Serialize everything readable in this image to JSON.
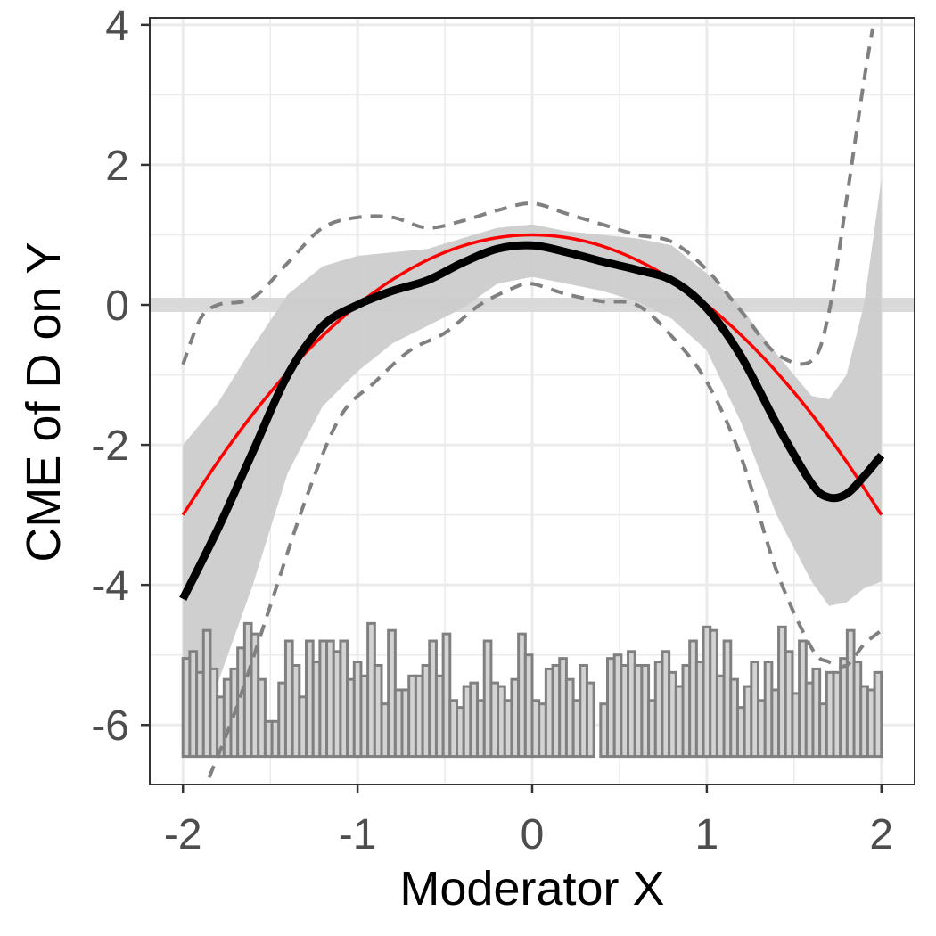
{
  "chart_data": {
    "type": "line",
    "xlabel": "Moderator X",
    "ylabel": "CME of D on Y",
    "xlim": [
      -2.19,
      2.19
    ],
    "ylim": [
      -6.85,
      4.1
    ],
    "x_ticks": [
      -2,
      -1,
      0,
      1,
      2
    ],
    "x_tick_labels": [
      "-2",
      "-1",
      "0",
      "1",
      "2"
    ],
    "y_ticks": [
      -6,
      -4,
      -2,
      0,
      2,
      4
    ],
    "y_tick_labels": [
      "-6",
      "-4",
      "-2",
      "0",
      "2",
      "4"
    ],
    "grid": true,
    "reference_line": {
      "y": 0,
      "color": "#d9d9d9"
    },
    "colors": {
      "estimate": "#000000",
      "true_effect": "#ff0000",
      "confidence_band": "#cccccc",
      "uniform_band": "#808080",
      "histogram_fill": "#d3d3d3",
      "histogram_stroke": "#808080"
    },
    "series": [
      {
        "name": "estimated CME",
        "style": "solid-thick",
        "x": [
          -2.0,
          -1.8,
          -1.6,
          -1.4,
          -1.2,
          -1.0,
          -0.8,
          -0.6,
          -0.4,
          -0.2,
          0.0,
          0.2,
          0.4,
          0.6,
          0.8,
          1.0,
          1.2,
          1.4,
          1.6,
          1.7,
          1.8,
          1.9,
          2.0
        ],
        "y": [
          -4.2,
          -3.2,
          -2.1,
          -1.0,
          -0.3,
          0.0,
          0.2,
          0.35,
          0.6,
          0.8,
          0.85,
          0.75,
          0.62,
          0.5,
          0.35,
          -0.05,
          -0.75,
          -1.7,
          -2.55,
          -2.75,
          -2.7,
          -2.45,
          -2.15
        ]
      },
      {
        "name": "true effect",
        "style": "solid-red",
        "x": [
          -2.0,
          -1.8,
          -1.6,
          -1.4,
          -1.2,
          -1.0,
          -0.8,
          -0.6,
          -0.4,
          -0.2,
          0.0,
          0.2,
          0.4,
          0.6,
          0.8,
          1.0,
          1.2,
          1.4,
          1.6,
          1.8,
          2.0
        ],
        "y": [
          -3.0,
          -2.24,
          -1.56,
          -0.96,
          -0.44,
          0.0,
          0.36,
          0.64,
          0.84,
          0.96,
          1.0,
          0.96,
          0.84,
          0.64,
          0.36,
          0.0,
          -0.44,
          -0.96,
          -1.56,
          -2.24,
          -3.0
        ]
      },
      {
        "name": "uniform band upper",
        "style": "dashed",
        "x": [
          -2.0,
          -1.9,
          -1.8,
          -1.6,
          -1.4,
          -1.2,
          -1.0,
          -0.8,
          -0.6,
          -0.4,
          -0.2,
          0.0,
          0.2,
          0.4,
          0.6,
          0.8,
          1.0,
          1.2,
          1.4,
          1.6,
          1.7,
          1.8,
          1.9,
          1.95
        ],
        "y": [
          -0.85,
          -0.2,
          0.0,
          0.1,
          0.6,
          1.1,
          1.25,
          1.25,
          1.1,
          1.2,
          1.35,
          1.45,
          1.3,
          1.15,
          1.0,
          0.9,
          0.5,
          -0.1,
          -0.7,
          -0.8,
          -0.1,
          1.5,
          3.2,
          3.95
        ]
      },
      {
        "name": "uniform band lower",
        "style": "dashed",
        "x": [
          -1.85,
          -1.7,
          -1.5,
          -1.3,
          -1.1,
          -0.9,
          -0.7,
          -0.5,
          -0.3,
          -0.1,
          0.0,
          0.2,
          0.4,
          0.6,
          0.8,
          1.0,
          1.2,
          1.4,
          1.6,
          1.7,
          1.8,
          1.9,
          2.0
        ],
        "y": [
          -6.75,
          -5.8,
          -4.3,
          -2.8,
          -1.6,
          -1.1,
          -0.65,
          -0.4,
          0.0,
          0.25,
          0.3,
          0.15,
          0.05,
          0.0,
          -0.45,
          -1.1,
          -2.2,
          -3.8,
          -4.9,
          -5.1,
          -5.15,
          -4.85,
          -4.65
        ]
      }
    ],
    "confidence_band": {
      "name": "pointwise confidence interval",
      "x": [
        -2.0,
        -1.8,
        -1.6,
        -1.4,
        -1.2,
        -1.0,
        -0.8,
        -0.6,
        -0.4,
        -0.2,
        0.0,
        0.2,
        0.4,
        0.6,
        0.8,
        1.0,
        1.2,
        1.4,
        1.6,
        1.7,
        1.8,
        1.9,
        2.0
      ],
      "upper": [
        -2.0,
        -1.4,
        -0.6,
        0.15,
        0.55,
        0.7,
        0.75,
        0.8,
        0.95,
        1.1,
        1.15,
        1.05,
        1.0,
        0.95,
        0.85,
        0.45,
        -0.05,
        -0.7,
        -1.3,
        -1.35,
        -1.0,
        0.0,
        1.8
      ],
      "lower": [
        -6.0,
        -5.4,
        -4.0,
        -2.4,
        -1.45,
        -0.95,
        -0.55,
        -0.3,
        -0.05,
        0.3,
        0.4,
        0.3,
        0.2,
        0.05,
        -0.2,
        -0.65,
        -1.7,
        -3.0,
        -3.95,
        -4.3,
        -4.25,
        -4.05,
        -3.95
      ]
    },
    "histogram": {
      "x_start": -2.0,
      "x_end": 2.0,
      "baseline_y": -6.45,
      "units_per_count": 0.05,
      "counts": [
        28,
        30,
        24,
        36,
        25,
        17,
        22,
        25,
        31,
        38,
        35,
        22,
        10,
        10,
        21,
        33,
        26,
        17,
        33,
        27,
        33,
        33,
        30,
        33,
        22,
        27,
        23,
        38,
        26,
        15,
        36,
        19,
        19,
        23,
        23,
        26,
        33,
        23,
        35,
        16,
        14,
        20,
        21,
        16,
        33,
        21,
        20,
        16,
        22,
        35,
        29,
        16,
        15,
        25,
        26,
        28,
        22,
        16,
        26,
        21,
        0,
        15,
        28,
        29,
        26,
        30,
        26,
        26,
        16,
        27,
        30,
        24,
        20,
        26,
        33,
        27,
        37,
        36,
        23,
        33,
        22,
        14,
        20,
        27,
        16,
        27,
        19,
        37,
        30,
        18,
        33,
        21,
        25,
        15,
        24,
        24,
        28,
        36,
        27,
        20,
        19,
        24
      ]
    }
  }
}
